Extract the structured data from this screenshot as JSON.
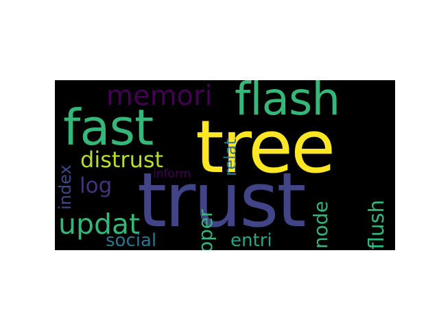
{
  "words": [
    {
      "text": "trust",
      "color": "#414487",
      "orientation": "horizontal"
    },
    {
      "text": "tree",
      "color": "#fde725",
      "orientation": "horizontal"
    },
    {
      "text": "fast",
      "color": "#35b779",
      "orientation": "horizontal"
    },
    {
      "text": "flash",
      "color": "#35b779",
      "orientation": "horizontal"
    },
    {
      "text": "memori",
      "color": "#440154",
      "orientation": "horizontal"
    },
    {
      "text": "distrust",
      "color": "#b5de2b",
      "orientation": "horizontal"
    },
    {
      "text": "updat",
      "color": "#35b779",
      "orientation": "horizontal"
    },
    {
      "text": "log",
      "color": "#46327e",
      "orientation": "horizontal"
    },
    {
      "text": "social",
      "color": "#2a788e",
      "orientation": "horizontal"
    },
    {
      "text": "entri",
      "color": "#22a884",
      "orientation": "horizontal"
    },
    {
      "text": "inform",
      "color": "#440154",
      "orientation": "horizontal"
    },
    {
      "text": "index",
      "color": "#3e4989",
      "orientation": "vertical"
    },
    {
      "text": "oper",
      "color": "#35b779",
      "orientation": "vertical"
    },
    {
      "text": "relat",
      "color": "#2a788e",
      "orientation": "vertical"
    },
    {
      "text": "node",
      "color": "#35b779",
      "orientation": "vertical"
    },
    {
      "text": "flush",
      "color": "#35b779",
      "orientation": "vertical"
    }
  ]
}
